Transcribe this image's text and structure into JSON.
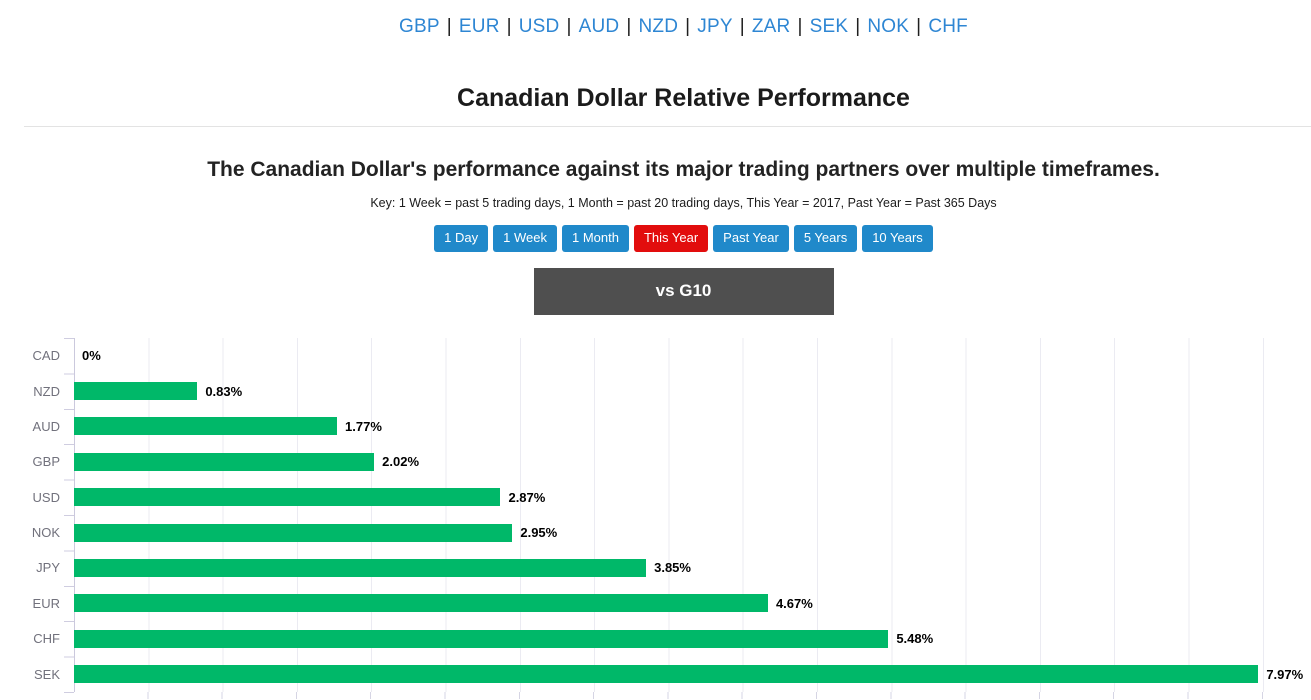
{
  "nav": {
    "currencies": [
      "GBP",
      "EUR",
      "USD",
      "AUD",
      "NZD",
      "JPY",
      "ZAR",
      "SEK",
      "NOK",
      "CHF"
    ],
    "separator": "|"
  },
  "header": {
    "title": "Canadian Dollar Relative Performance",
    "subtitle": "The Canadian Dollar's performance against its major trading partners over multiple timeframes.",
    "key_note": "Key: 1 Week = past 5 trading days, 1 Month = past 20 trading days, This Year = 2017, Past Year = Past 365 Days"
  },
  "timeframe_buttons": [
    {
      "label": "1 Day",
      "active": false
    },
    {
      "label": "1 Week",
      "active": false
    },
    {
      "label": "1 Month",
      "active": false
    },
    {
      "label": "This Year",
      "active": true
    },
    {
      "label": "Past Year",
      "active": false
    },
    {
      "label": "5 Years",
      "active": false
    },
    {
      "label": "10 Years",
      "active": false
    }
  ],
  "section": {
    "title": "vs G10"
  },
  "colors": {
    "link_blue": "#2e86d3",
    "button_blue": "#2089ca",
    "button_active_red": "#e20d0d",
    "section_header_bg": "#4f4f4f",
    "bar_green": "#00b869"
  },
  "chart_data": {
    "type": "bar",
    "orientation": "horizontal",
    "title": "vs G10",
    "categories": [
      "CAD",
      "NZD",
      "AUD",
      "GBP",
      "USD",
      "NOK",
      "JPY",
      "EUR",
      "CHF",
      "SEK"
    ],
    "values": [
      0,
      0.83,
      1.77,
      2.02,
      2.87,
      2.95,
      3.85,
      4.67,
      5.48,
      7.97
    ],
    "value_labels": [
      "0%",
      "0.83%",
      "1.77%",
      "2.02%",
      "2.87%",
      "2.95%",
      "3.85%",
      "4.67%",
      "5.48%",
      "7.97%"
    ],
    "unit": "%",
    "xlim": [
      0,
      8.3
    ],
    "gridline_step": 0.5,
    "grid": true,
    "bar_color": "#00b869"
  }
}
